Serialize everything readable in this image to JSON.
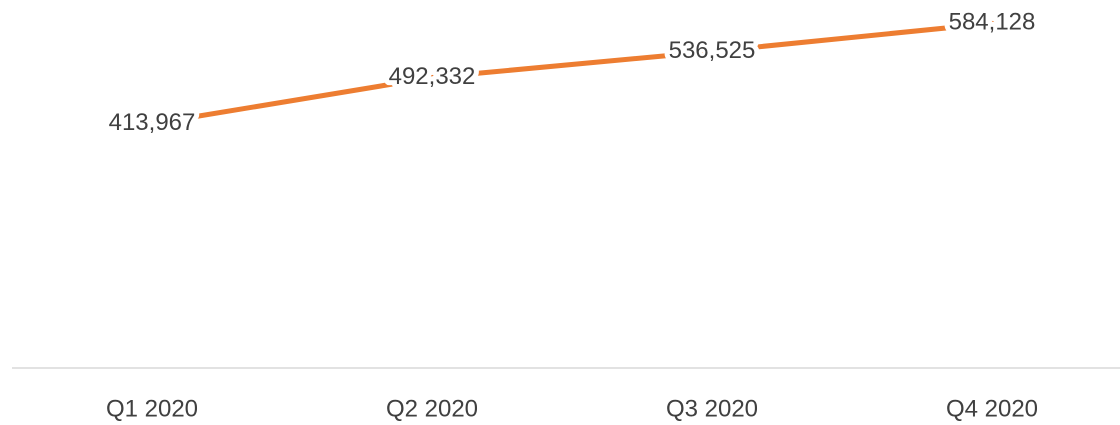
{
  "chart_data": {
    "type": "line",
    "categories": [
      "Q1 2020",
      "Q2 2020",
      "Q3 2020",
      "Q4 2020"
    ],
    "series": [
      {
        "color": "#ed7d31",
        "values": [
          413967,
          492332,
          536525,
          584128
        ],
        "value_labels": [
          "413,967",
          "492,332",
          "536,525",
          "584,128"
        ]
      }
    ],
    "ylim": [
      0,
      600000
    ]
  }
}
